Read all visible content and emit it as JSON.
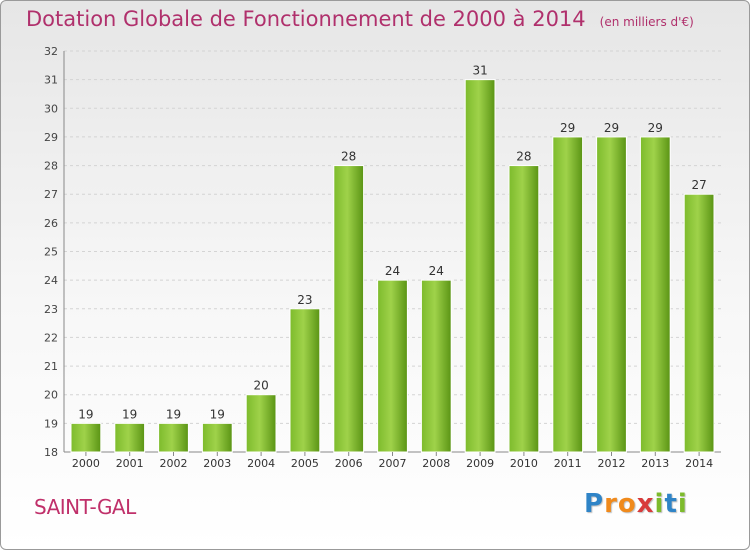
{
  "chart_data": {
    "type": "bar",
    "title": "Dotation Globale de Fonctionnement de 2000 à 2014",
    "subtitle": "(en milliers d'€)",
    "categories": [
      "2000",
      "2001",
      "2002",
      "2003",
      "2004",
      "2005",
      "2006",
      "2007",
      "2008",
      "2009",
      "2010",
      "2011",
      "2012",
      "2013",
      "2014"
    ],
    "values": [
      19,
      19,
      19,
      19,
      20,
      23,
      28,
      24,
      24,
      31,
      28,
      29,
      29,
      29,
      27
    ],
    "ylim": [
      18,
      32
    ],
    "yticks": [
      18,
      19,
      20,
      21,
      22,
      23,
      24,
      25,
      26,
      27,
      28,
      29,
      30,
      31,
      32
    ],
    "grid": true,
    "bar_color": "#7dbb2c",
    "bar_color_light": "#9fd24a",
    "bar_color_dark": "#5a9414",
    "title_color": "#b0306c"
  },
  "location": {
    "name": "SAINT-GAL"
  },
  "brand": {
    "letters": [
      "P",
      "r",
      "o",
      "x",
      "i",
      "t",
      "i"
    ],
    "colors": [
      "#2f84c7",
      "#f08a1c",
      "#f08a1c",
      "#d83b3b",
      "#7dbb2c",
      "#2f84c7",
      "#7dbb2c"
    ]
  }
}
